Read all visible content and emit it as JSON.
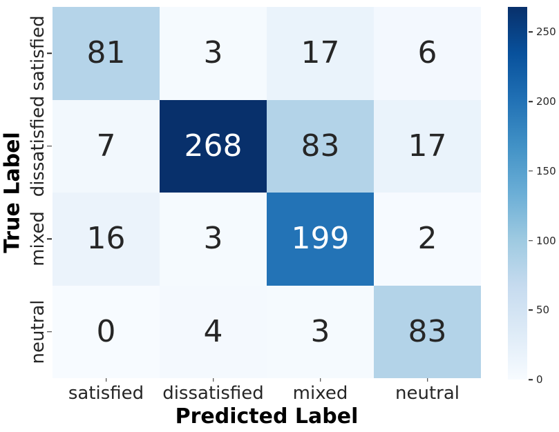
{
  "figure": {
    "background_color": "#ffffff",
    "text_color": "#262626",
    "tick_color": "#262626"
  },
  "chart_data": {
    "type": "heatmap",
    "title": "",
    "xlabel": "Predicted Label",
    "ylabel": "True Label",
    "x_categories": [
      "satisfied",
      "dissatisfied",
      "mixed",
      "neutral"
    ],
    "y_categories": [
      "satisfied",
      "dissatisfied",
      "mixed",
      "neutral"
    ],
    "values": [
      [
        81,
        3,
        17,
        6
      ],
      [
        7,
        268,
        83,
        17
      ],
      [
        16,
        3,
        199,
        2
      ],
      [
        0,
        4,
        3,
        83
      ]
    ],
    "vmin": 0,
    "vmax": 268,
    "colormap": "Blues",
    "grid": false,
    "legend_position": "right-colorbar",
    "colorbar_ticks": [
      0,
      50,
      100,
      150,
      200,
      250
    ],
    "colorbar_gradient_top_to_bottom": [
      "#08306b",
      "#08519c",
      "#2171b5",
      "#4292c6",
      "#6baed6",
      "#9ecae1",
      "#c6dbef",
      "#deebf7",
      "#f7fbff"
    ],
    "cell_colors": [
      [
        "#b5d4e9",
        "#f5fafe",
        "#eaf3fb",
        "#f3f8fe"
      ],
      [
        "#f2f8fd",
        "#08306b",
        "#b3d3e8",
        "#eaf3fb"
      ],
      [
        "#ebf3fb",
        "#f5fafe",
        "#2373b6",
        "#f6faff"
      ],
      [
        "#f7fbff",
        "#f4f9fe",
        "#f5fafe",
        "#b3d3e8"
      ]
    ],
    "cell_text_colors": [
      [
        "#262626",
        "#262626",
        "#262626",
        "#262626"
      ],
      [
        "#262626",
        "#ffffff",
        "#262626",
        "#262626"
      ],
      [
        "#262626",
        "#262626",
        "#ffffff",
        "#262626"
      ],
      [
        "#262626",
        "#262626",
        "#262626",
        "#262626"
      ]
    ]
  }
}
